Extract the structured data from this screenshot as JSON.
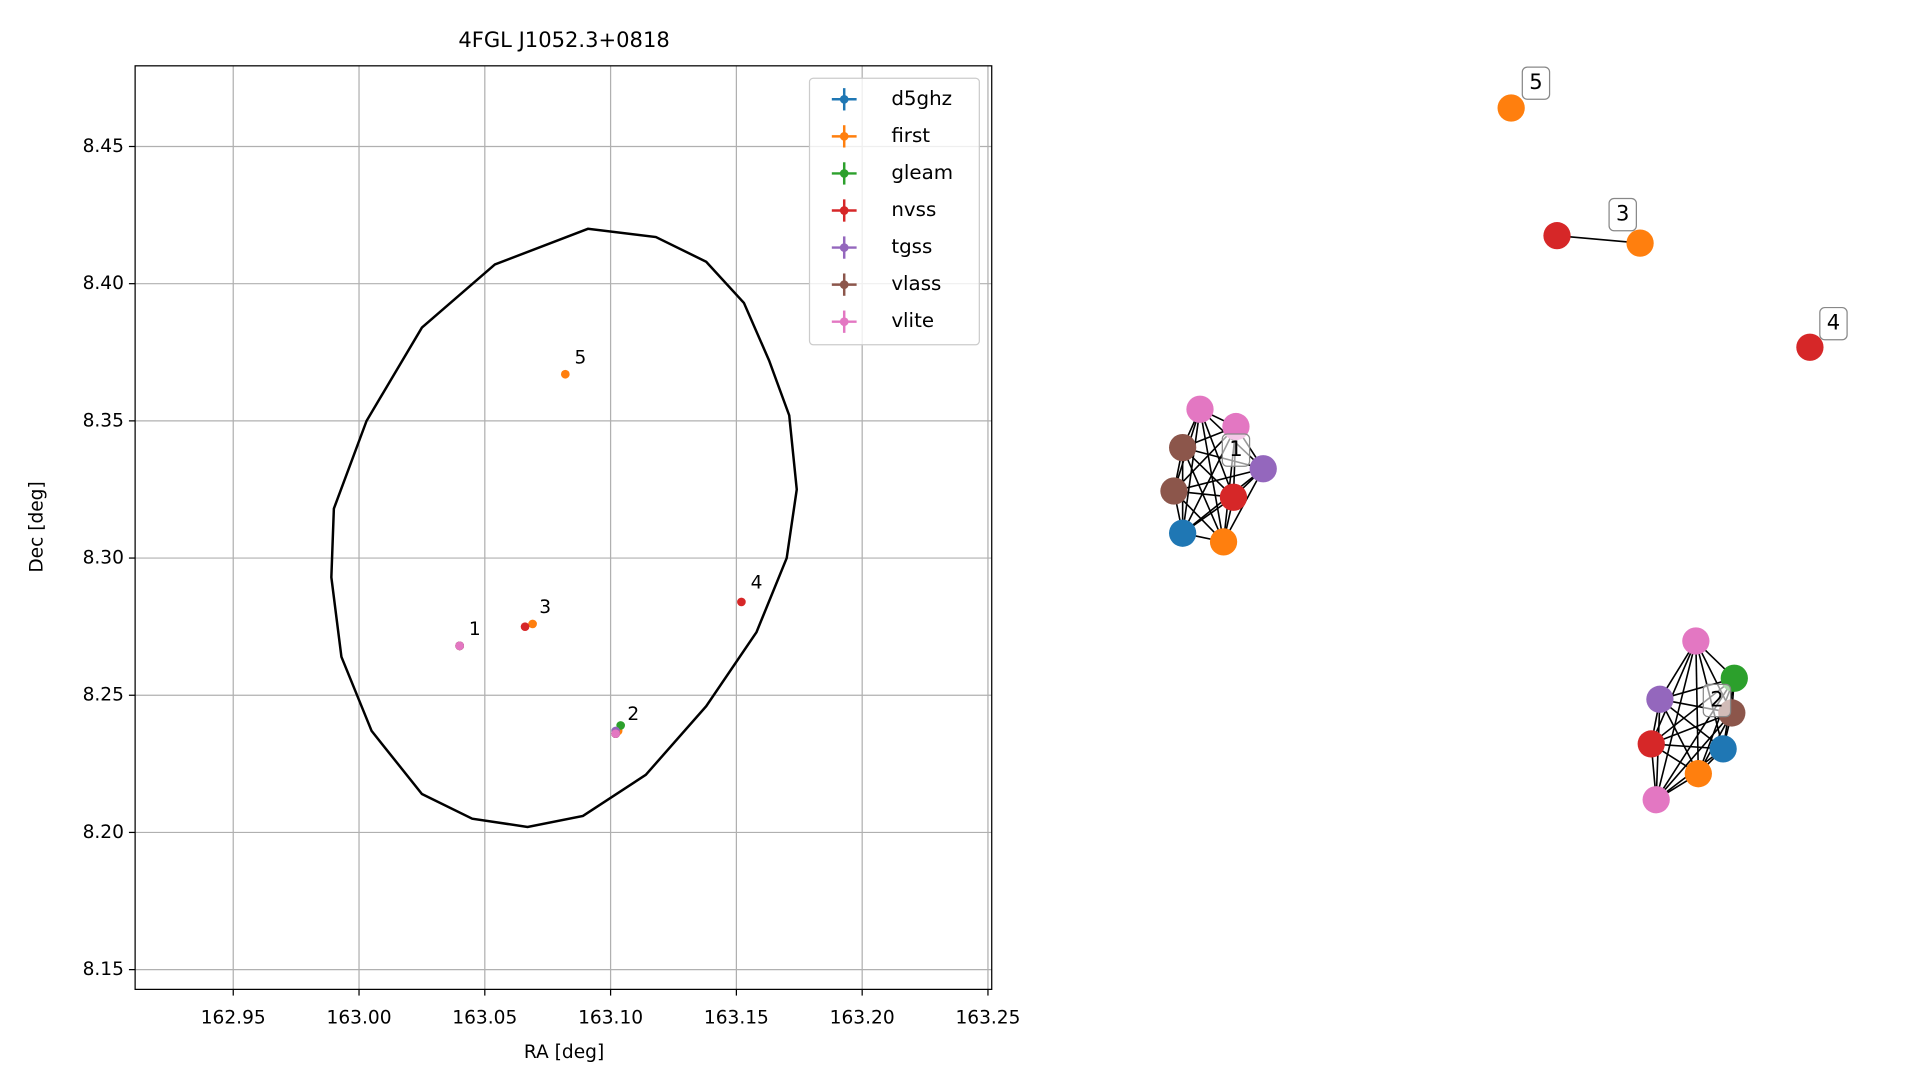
{
  "chart_data": {
    "type": "scatter",
    "title": "4FGL J1052.3+0818",
    "x_label": "RA [deg]",
    "y_label": "Dec [deg]",
    "xlim": [
      162.911,
      163.2515
    ],
    "ylim": [
      8.1428,
      8.4794
    ],
    "xticks": [
      162.95,
      {
        "value": 163,
        "label": "163.00"
      },
      163.05,
      {
        "value": 163.1,
        "label": "163.10"
      },
      163.15,
      {
        "value": 163.2,
        "label": "163.20"
      },
      163.25
    ],
    "yticks": [
      8.15,
      {
        "value": 8.2,
        "label": "8.20"
      },
      8.25,
      {
        "value": 8.3,
        "label": "8.30"
      },
      8.35,
      {
        "value": 8.4,
        "label": "8.40"
      },
      8.45
    ],
    "grid": true,
    "legend": "upper right",
    "series": [
      {
        "name": "d5ghz",
        "color": "#1f77b4",
        "x": [
          163.04,
          163.102
        ],
        "y": [
          8.268,
          8.236
        ]
      },
      {
        "name": "first",
        "color": "#ff7f0e",
        "x": [
          163.04,
          163.103,
          163.069,
          163.082
        ],
        "y": [
          8.268,
          8.237,
          8.276,
          8.367
        ]
      },
      {
        "name": "gleam",
        "color": "#2ca02c",
        "x": [
          163.104
        ],
        "y": [
          8.239
        ]
      },
      {
        "name": "nvss",
        "color": "#d62728",
        "x": [
          163.04,
          163.102,
          163.066,
          163.152
        ],
        "y": [
          8.268,
          8.236,
          8.275,
          8.284
        ]
      },
      {
        "name": "tgss",
        "color": "#9467bd",
        "x": [
          163.04,
          163.102
        ],
        "y": [
          8.268,
          8.237
        ]
      },
      {
        "name": "vlass",
        "color": "#8c564b",
        "x": [
          163.04,
          163.102
        ],
        "y": [
          8.268,
          8.236
        ]
      },
      {
        "name": "vlite",
        "color": "#e377c2",
        "x": [
          163.04,
          163.102
        ],
        "y": [
          8.268,
          8.236
        ]
      }
    ],
    "ellipse": {
      "color": "#000000",
      "x": [
        163.091,
        163.054,
        163.025,
        163.003,
        162.99,
        162.989,
        162.993,
        163.005,
        163.025,
        163.045,
        163.067,
        163.089,
        163.114,
        163.138,
        163.158,
        163.17,
        163.174,
        163.171,
        163.163,
        163.153,
        163.138,
        163.118
      ],
      "y": [
        8.42,
        8.407,
        8.384,
        8.35,
        8.318,
        8.293,
        8.264,
        8.237,
        8.214,
        8.205,
        8.202,
        8.206,
        8.221,
        8.246,
        8.273,
        8.3,
        8.325,
        8.352,
        8.372,
        8.393,
        8.408,
        8.417
      ]
    },
    "annotations": [
      {
        "text": "1",
        "x": 163.046,
        "y": 8.274
      },
      {
        "text": "2",
        "x": 163.109,
        "y": 8.243
      },
      {
        "text": "3",
        "x": 163.074,
        "y": 8.282
      },
      {
        "text": "4",
        "x": 163.158,
        "y": 8.291
      },
      {
        "text": "5",
        "x": 163.088,
        "y": 8.373
      }
    ]
  },
  "graph": {
    "clusters": [
      {
        "label": "1",
        "colors": [
          "#e377c2",
          "#e377c2",
          "#8c564b",
          "#9467bd",
          "#8c564b",
          "#d62728",
          "#1f77b4",
          "#ff7f0e"
        ]
      },
      {
        "label": "2",
        "colors": [
          "#e377c2",
          "#2ca02c",
          "#9467bd",
          "#8c564b",
          "#d62728",
          "#1f77b4",
          "#ff7f0e",
          "#e377c2"
        ]
      },
      {
        "label": "3",
        "colors": [
          "#d62728",
          "#ff7f0e"
        ]
      },
      {
        "label": "4",
        "colors": [
          "#d62728"
        ]
      },
      {
        "label": "5",
        "colors": [
          "#ff7f0e"
        ]
      }
    ]
  }
}
